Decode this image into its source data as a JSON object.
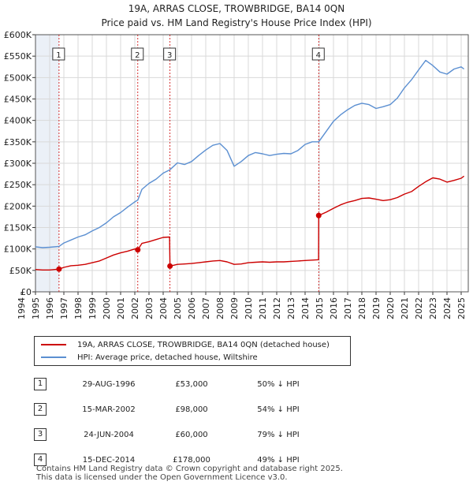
{
  "header": {
    "title_line1": "19A, ARRAS CLOSE, TROWBRIDGE, BA14 0QN",
    "title_line2": "Price paid vs. HM Land Registry's House Price Index (HPI)"
  },
  "colors": {
    "property": "#cc0000",
    "hpi": "#5b8fd1",
    "shade": "#dde6f2"
  },
  "chart_data": {
    "type": "line",
    "title": "19A, ARRAS CLOSE, TROWBRIDGE, BA14 0QN",
    "subtitle": "Price paid vs. HM Land Registry's House Price Index (HPI)",
    "xlim": [
      1995,
      2025.5
    ],
    "ylim": [
      0,
      600000
    ],
    "x_ticks": [
      1994,
      1995,
      1996,
      1997,
      1998,
      1999,
      2000,
      2001,
      2002,
      2003,
      2004,
      2005,
      2006,
      2007,
      2008,
      2009,
      2010,
      2011,
      2012,
      2013,
      2014,
      2015,
      2016,
      2017,
      2018,
      2019,
      2020,
      2021,
      2022,
      2023,
      2024,
      2025
    ],
    "y_ticks": [
      {
        "value": 0,
        "label": "£0"
      },
      {
        "value": 50000,
        "label": "£50K"
      },
      {
        "value": 100000,
        "label": "£100K"
      },
      {
        "value": 150000,
        "label": "£150K"
      },
      {
        "value": 200000,
        "label": "£200K"
      },
      {
        "value": 250000,
        "label": "£250K"
      },
      {
        "value": 300000,
        "label": "£300K"
      },
      {
        "value": 350000,
        "label": "£350K"
      },
      {
        "value": 400000,
        "label": "£400K"
      },
      {
        "value": 450000,
        "label": "£450K"
      },
      {
        "value": 500000,
        "label": "£500K"
      },
      {
        "value": 550000,
        "label": "£550K"
      },
      {
        "value": 600000,
        "label": "£600K"
      }
    ],
    "series": [
      {
        "name": "19A, ARRAS CLOSE, TROWBRIDGE, BA14 0QN (detached house)",
        "color": "#cc0000",
        "x": [
          1995.0,
          1995.5,
          1996.0,
          1996.66,
          1997.0,
          1997.5,
          1998.0,
          1998.5,
          1999.0,
          1999.5,
          2000.0,
          2000.5,
          2001.0,
          2001.5,
          2002.0,
          2002.21,
          2002.5,
          2003.0,
          2003.5,
          2004.0,
          2004.45,
          2004.48,
          2005.0,
          2005.5,
          2006.0,
          2006.5,
          2007.0,
          2007.5,
          2008.0,
          2008.5,
          2009.0,
          2009.5,
          2010.0,
          2010.5,
          2011.0,
          2011.5,
          2012.0,
          2012.5,
          2013.0,
          2013.5,
          2014.0,
          2014.95,
          2014.96,
          2015.5,
          2016.0,
          2016.5,
          2017.0,
          2017.5,
          2018.0,
          2018.5,
          2019.0,
          2019.5,
          2020.0,
          2020.5,
          2021.0,
          2021.5,
          2022.0,
          2022.5,
          2023.0,
          2023.5,
          2024.0,
          2024.5,
          2025.0,
          2025.2
        ],
        "y": [
          52000,
          51000,
          51000,
          53000,
          57000,
          61000,
          62000,
          64000,
          68000,
          72000,
          79000,
          86000,
          91000,
          95000,
          100000,
          98000,
          113000,
          117000,
          122000,
          127000,
          128000,
          60000,
          64000,
          65000,
          66000,
          68000,
          70000,
          72000,
          73000,
          70000,
          64000,
          65000,
          68000,
          69000,
          70000,
          69000,
          70000,
          70000,
          71000,
          72000,
          73000,
          75000,
          178000,
          186000,
          195000,
          203000,
          209000,
          213000,
          218000,
          219000,
          216000,
          213000,
          215000,
          220000,
          228000,
          234000,
          246000,
          257000,
          266000,
          263000,
          256000,
          260000,
          265000,
          270000
        ]
      },
      {
        "name": "HPI: Average price, detached house, Wiltshire",
        "color": "#5b8fd1",
        "x": [
          1995.0,
          1995.5,
          1996.0,
          1996.66,
          1997.0,
          1997.5,
          1998.0,
          1998.5,
          1999.0,
          1999.5,
          2000.0,
          2000.5,
          2001.0,
          2001.5,
          2002.0,
          2002.21,
          2002.5,
          2003.0,
          2003.5,
          2004.0,
          2004.48,
          2005.0,
          2005.5,
          2006.0,
          2006.5,
          2007.0,
          2007.5,
          2008.0,
          2008.5,
          2009.0,
          2009.5,
          2010.0,
          2010.5,
          2011.0,
          2011.5,
          2012.0,
          2012.5,
          2013.0,
          2013.5,
          2014.0,
          2014.5,
          2014.96,
          2015.5,
          2016.0,
          2016.5,
          2017.0,
          2017.5,
          2018.0,
          2018.5,
          2019.0,
          2019.5,
          2020.0,
          2020.5,
          2021.0,
          2021.5,
          2022.0,
          2022.5,
          2023.0,
          2023.5,
          2024.0,
          2024.5,
          2025.0,
          2025.2
        ],
        "y": [
          105000,
          103000,
          104000,
          106000,
          114000,
          121000,
          128000,
          133000,
          142000,
          150000,
          161000,
          175000,
          185000,
          198000,
          210000,
          214000,
          239000,
          253000,
          263000,
          277000,
          285000,
          301000,
          297000,
          304000,
          318000,
          331000,
          342000,
          346000,
          330000,
          293000,
          304000,
          318000,
          325000,
          322000,
          318000,
          321000,
          323000,
          322000,
          330000,
          344000,
          350000,
          350000,
          375000,
          398000,
          413000,
          425000,
          435000,
          440000,
          437000,
          428000,
          432000,
          437000,
          452000,
          476000,
          495000,
          518000,
          540000,
          528000,
          513000,
          508000,
          520000,
          525000,
          520000
        ]
      }
    ],
    "sales": [
      {
        "id": "1",
        "date": "29-AUG-1996",
        "x": 1996.66,
        "price": 53000,
        "price_label": "£53,000",
        "hpi_note": "50% ↓ HPI"
      },
      {
        "id": "2",
        "date": "15-MAR-2002",
        "x": 2002.21,
        "price": 98000,
        "price_label": "£98,000",
        "hpi_note": "54% ↓ HPI"
      },
      {
        "id": "3",
        "date": "24-JUN-2004",
        "x": 2004.48,
        "price": 60000,
        "price_label": "£60,000",
        "hpi_note": "79% ↓ HPI"
      },
      {
        "id": "4",
        "date": "15-DEC-2014",
        "x": 2014.96,
        "price": 178000,
        "price_label": "£178,000",
        "hpi_note": "49% ↓ HPI"
      }
    ]
  },
  "legend": {
    "property_label": "19A, ARRAS CLOSE, TROWBRIDGE, BA14 0QN (detached house)",
    "hpi_label": "HPI: Average price, detached house, Wiltshire"
  },
  "footer": {
    "line1": "Contains HM Land Registry data © Crown copyright and database right 2025.",
    "line2": "This data is licensed under the Open Government Licence v3.0."
  }
}
